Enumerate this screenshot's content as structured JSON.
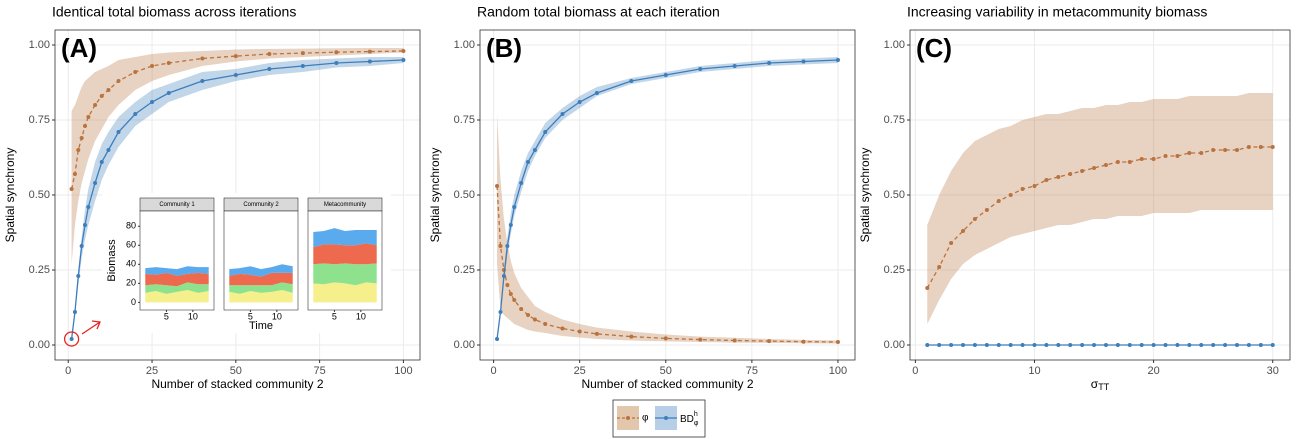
{
  "chart_data": [
    {
      "type": "line",
      "title": "Identical total biomass across iterations",
      "annotation": "(A)",
      "xlabel": "Number of stacked community 2",
      "ylabel": "Spatial synchrony",
      "xlim": [
        -3.95,
        104.95
      ],
      "xticks": [
        0,
        25,
        50,
        75,
        100
      ],
      "ylim": [
        -0.05,
        1.05
      ],
      "yticks": [
        {
          "value": 0,
          "label": "0.00"
        },
        {
          "value": 0.25,
          "label": "0.25"
        },
        {
          "value": 0.5,
          "label": "0.50"
        },
        {
          "value": 0.75,
          "label": "0.75"
        },
        {
          "value": 1,
          "label": "1.00"
        }
      ],
      "grid": true,
      "x": [
        1,
        2,
        3,
        4,
        5,
        6,
        8,
        10,
        12,
        15,
        20,
        25,
        30,
        40,
        50,
        60,
        70,
        80,
        90,
        100
      ],
      "series": [
        {
          "name": "φ",
          "color": "#b8733f",
          "linestyle": "dashed",
          "values": [
            0.52,
            0.57,
            0.65,
            0.69,
            0.73,
            0.76,
            0.8,
            0.83,
            0.85,
            0.88,
            0.91,
            0.93,
            0.94,
            0.955,
            0.963,
            0.97,
            0.973,
            0.976,
            0.978,
            0.98
          ],
          "lower": [
            0.27,
            0.4,
            0.48,
            0.54,
            0.58,
            0.62,
            0.68,
            0.72,
            0.76,
            0.8,
            0.85,
            0.88,
            0.9,
            0.93,
            0.945,
            0.955,
            0.96,
            0.965,
            0.97,
            0.975
          ],
          "upper": [
            0.78,
            0.8,
            0.83,
            0.86,
            0.88,
            0.89,
            0.91,
            0.92,
            0.93,
            0.95,
            0.96,
            0.97,
            0.975,
            0.98,
            0.985,
            0.987,
            0.988,
            0.989,
            0.99,
            0.99
          ]
        },
        {
          "name": "BD",
          "name_sup": "h",
          "name_sub": "φ",
          "color": "#3d7ebb",
          "linestyle": "solid",
          "values": [
            0.02,
            0.11,
            0.23,
            0.33,
            0.4,
            0.46,
            0.54,
            0.61,
            0.65,
            0.71,
            0.77,
            0.81,
            0.84,
            0.88,
            0.9,
            0.92,
            0.93,
            0.94,
            0.945,
            0.95
          ],
          "lower": [
            0.02,
            0.1,
            0.2,
            0.29,
            0.35,
            0.4,
            0.48,
            0.55,
            0.6,
            0.66,
            0.73,
            0.77,
            0.81,
            0.85,
            0.88,
            0.9,
            0.91,
            0.925,
            0.93,
            0.94
          ],
          "upper": [
            0.02,
            0.12,
            0.25,
            0.36,
            0.45,
            0.52,
            0.61,
            0.67,
            0.71,
            0.76,
            0.81,
            0.85,
            0.87,
            0.91,
            0.92,
            0.94,
            0.95,
            0.955,
            0.96,
            0.96
          ]
        }
      ]
    },
    {
      "type": "line",
      "title": "Random total biomass at each iteration",
      "annotation": "(B)",
      "xlabel": "Number of stacked community 2",
      "ylabel": "Spatial synchrony",
      "xlim": [
        -3.95,
        104.95
      ],
      "xticks": [
        0,
        25,
        50,
        75,
        100
      ],
      "ylim": [
        -0.05,
        1.05
      ],
      "yticks": [
        {
          "value": 0,
          "label": "0.00"
        },
        {
          "value": 0.25,
          "label": "0.25"
        },
        {
          "value": 0.5,
          "label": "0.50"
        },
        {
          "value": 0.75,
          "label": "0.75"
        },
        {
          "value": 1,
          "label": "1.00"
        }
      ],
      "grid": true,
      "x": [
        1,
        2,
        3,
        4,
        5,
        6,
        8,
        10,
        12,
        15,
        20,
        25,
        30,
        40,
        50,
        60,
        70,
        80,
        90,
        100
      ],
      "series": [
        {
          "color": "#b8733f",
          "linestyle": "dashed",
          "values": [
            0.53,
            0.33,
            0.25,
            0.2,
            0.17,
            0.15,
            0.12,
            0.1,
            0.085,
            0.07,
            0.055,
            0.045,
            0.037,
            0.028,
            0.022,
            0.018,
            0.015,
            0.013,
            0.011,
            0.01
          ],
          "lower": [
            0.27,
            0.12,
            0.1,
            0.09,
            0.08,
            0.07,
            0.06,
            0.05,
            0.045,
            0.04,
            0.03,
            0.025,
            0.02,
            0.015,
            0.012,
            0.01,
            0.008,
            0.007,
            0.006,
            0.005
          ],
          "upper": [
            0.77,
            0.55,
            0.42,
            0.34,
            0.28,
            0.24,
            0.19,
            0.16,
            0.13,
            0.11,
            0.085,
            0.07,
            0.058,
            0.045,
            0.035,
            0.028,
            0.024,
            0.02,
            0.017,
            0.015
          ]
        },
        {
          "color": "#3d7ebb",
          "linestyle": "solid",
          "values": [
            0.02,
            0.11,
            0.23,
            0.33,
            0.4,
            0.46,
            0.54,
            0.61,
            0.65,
            0.71,
            0.77,
            0.81,
            0.84,
            0.88,
            0.9,
            0.92,
            0.93,
            0.94,
            0.945,
            0.95
          ],
          "lower": [
            0.02,
            0.1,
            0.21,
            0.3,
            0.37,
            0.43,
            0.51,
            0.58,
            0.63,
            0.69,
            0.75,
            0.79,
            0.83,
            0.87,
            0.89,
            0.91,
            0.92,
            0.93,
            0.935,
            0.94
          ],
          "upper": [
            0.02,
            0.12,
            0.25,
            0.36,
            0.44,
            0.5,
            0.58,
            0.64,
            0.68,
            0.74,
            0.79,
            0.83,
            0.86,
            0.89,
            0.91,
            0.93,
            0.94,
            0.95,
            0.955,
            0.96
          ]
        }
      ]
    },
    {
      "type": "line",
      "title": "Increasing variability in metacommunity biomass",
      "annotation": "(C)",
      "xlabel": "σ",
      "xlabel_sub": "TT",
      "ylabel": "Spatial synchrony",
      "xlim": [
        -0.45,
        31.45
      ],
      "xticks": [
        0,
        10,
        20,
        30
      ],
      "ylim": [
        -0.05,
        1.05
      ],
      "yticks": [
        {
          "value": 0,
          "label": "0.00"
        },
        {
          "value": 0.25,
          "label": "0.25"
        },
        {
          "value": 0.5,
          "label": "0.50"
        },
        {
          "value": 0.75,
          "label": "0.75"
        },
        {
          "value": 1,
          "label": "1.00"
        }
      ],
      "grid": true,
      "x": [
        1,
        2,
        3,
        4,
        5,
        6,
        7,
        8,
        9,
        10,
        11,
        12,
        13,
        14,
        15,
        16,
        17,
        18,
        19,
        20,
        21,
        22,
        23,
        24,
        25,
        26,
        27,
        28,
        29,
        30
      ],
      "series": [
        {
          "color": "#b8733f",
          "linestyle": "dashed",
          "values": [
            0.19,
            0.26,
            0.34,
            0.38,
            0.42,
            0.45,
            0.48,
            0.5,
            0.52,
            0.53,
            0.55,
            0.56,
            0.57,
            0.58,
            0.59,
            0.6,
            0.61,
            0.61,
            0.62,
            0.62,
            0.63,
            0.63,
            0.64,
            0.64,
            0.65,
            0.65,
            0.65,
            0.66,
            0.66,
            0.66
          ],
          "lower": [
            0.07,
            0.15,
            0.22,
            0.27,
            0.3,
            0.32,
            0.34,
            0.36,
            0.37,
            0.38,
            0.39,
            0.4,
            0.4,
            0.41,
            0.42,
            0.42,
            0.43,
            0.43,
            0.43,
            0.44,
            0.44,
            0.44,
            0.44,
            0.45,
            0.45,
            0.45,
            0.45,
            0.45,
            0.45,
            0.45
          ],
          "upper": [
            0.4,
            0.5,
            0.58,
            0.64,
            0.68,
            0.7,
            0.72,
            0.73,
            0.75,
            0.76,
            0.77,
            0.77,
            0.78,
            0.79,
            0.79,
            0.8,
            0.8,
            0.81,
            0.81,
            0.82,
            0.82,
            0.82,
            0.83,
            0.83,
            0.83,
            0.83,
            0.83,
            0.84,
            0.84,
            0.84
          ]
        },
        {
          "color": "#3d7ebb",
          "linestyle": "solid",
          "values": [
            0,
            0,
            0,
            0,
            0,
            0,
            0,
            0,
            0,
            0,
            0,
            0,
            0,
            0,
            0,
            0,
            0,
            0,
            0,
            0,
            0,
            0,
            0,
            0,
            0,
            0,
            0,
            0,
            0,
            0
          ]
        }
      ]
    },
    {
      "type": "stacked-area",
      "xlabel": "Time",
      "ylabel": "Biomass",
      "xlim": [
        0,
        14
      ],
      "xticks": [
        5,
        10
      ],
      "ylim": [
        -8,
        96
      ],
      "yticks": [
        0,
        20,
        40,
        60,
        80
      ],
      "x": [
        1,
        3,
        5,
        7,
        9,
        11,
        13
      ],
      "facets": [
        {
          "title": "Community 1",
          "series": [
            {
              "color": "#f5ef8c",
              "values": [
                10,
                12,
                9,
                11,
                13,
                10,
                12
              ]
            },
            {
              "color": "#8fe28d",
              "values": [
                8,
                7,
                9,
                6,
                8,
                9,
                7
              ]
            },
            {
              "color": "#ee6a4f",
              "values": [
                12,
                10,
                13,
                11,
                9,
                12,
                11
              ]
            },
            {
              "color": "#5aaaee",
              "values": [
                6,
                8,
                5,
                7,
                8,
                6,
                7
              ]
            }
          ]
        },
        {
          "title": "Community 2",
          "series": [
            {
              "color": "#f5ef8c",
              "values": [
                11,
                9,
                12,
                10,
                11,
                13,
                10
              ]
            },
            {
              "color": "#8fe28d",
              "values": [
                7,
                9,
                6,
                8,
                7,
                8,
                9
              ]
            },
            {
              "color": "#ee6a4f",
              "values": [
                10,
                12,
                11,
                9,
                13,
                10,
                12
              ]
            },
            {
              "color": "#5aaaee",
              "values": [
                7,
                6,
                9,
                8,
                6,
                9,
                7
              ]
            }
          ]
        },
        {
          "title": "Metacommunity",
          "series": [
            {
              "color": "#f5ef8c",
              "values": [
                20,
                19,
                21,
                20,
                18,
                21,
                20
              ]
            },
            {
              "color": "#8fe28d",
              "values": [
                20,
                22,
                19,
                21,
                22,
                19,
                21
              ]
            },
            {
              "color": "#ee6a4f",
              "values": [
                18,
                20,
                21,
                19,
                20,
                22,
                19
              ]
            },
            {
              "color": "#5aaaee",
              "values": [
                16,
                14,
                17,
                15,
                16,
                14,
                16
              ]
            }
          ]
        }
      ]
    }
  ]
}
